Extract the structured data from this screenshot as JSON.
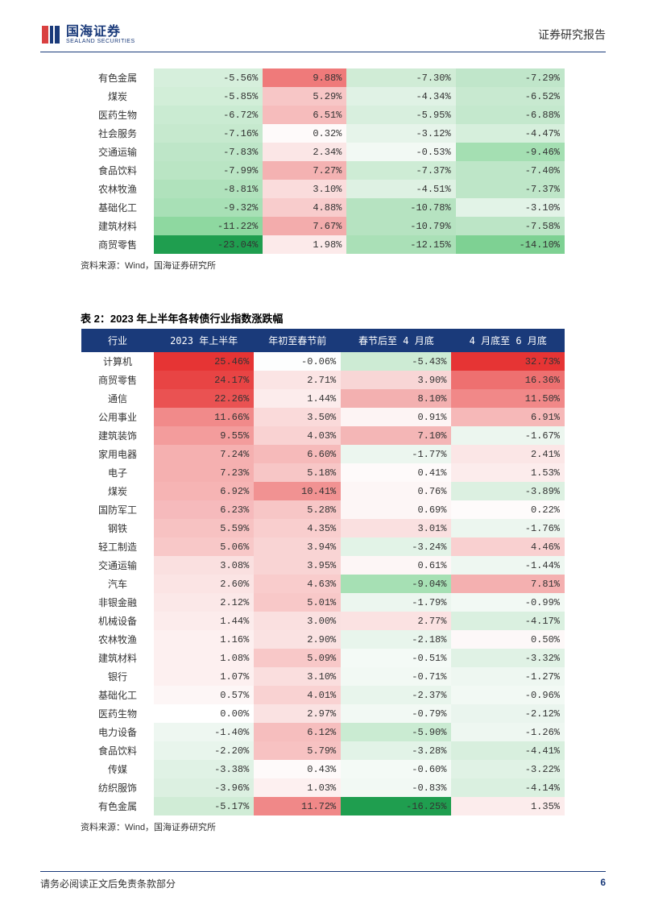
{
  "header": {
    "logo_cn": "国海证券",
    "logo_en": "SEALAND SECURITIES",
    "right": "证券研究报告"
  },
  "palette": {
    "header_bg": "#1a3a7a",
    "header_fg": "#ffffff",
    "green_max": "#1f9e4f",
    "green_mid": "#a8e0b8",
    "green_light": "#e4f5e9",
    "red_max": "#e63434",
    "red_mid": "#f5a8a8",
    "red_light": "#fbe8e8",
    "white": "#ffffff"
  },
  "table1": {
    "rows": [
      {
        "label": "有色金属",
        "cells": [
          {
            "v": "-5.56%",
            "bg": "#d6efdc"
          },
          {
            "v": "9.88%",
            "bg": "#ef7a7a"
          },
          {
            "v": "-7.30%",
            "bg": "#d0ecd6"
          },
          {
            "v": "-7.29%",
            "bg": "#c0e6ca"
          }
        ]
      },
      {
        "label": "煤炭",
        "cells": [
          {
            "v": "-5.85%",
            "bg": "#d2eed8"
          },
          {
            "v": "5.29%",
            "bg": "#f7c6c6"
          },
          {
            "v": "-4.34%",
            "bg": "#e0f2e5"
          },
          {
            "v": "-6.52%",
            "bg": "#c8e9d0"
          }
        ]
      },
      {
        "label": "医药生物",
        "cells": [
          {
            "v": "-6.72%",
            "bg": "#caebd2"
          },
          {
            "v": "6.51%",
            "bg": "#f6bcbc"
          },
          {
            "v": "-5.95%",
            "bg": "#d8efde"
          },
          {
            "v": "-6.88%",
            "bg": "#c4e8cd"
          }
        ]
      },
      {
        "label": "社会服务",
        "cells": [
          {
            "v": "-7.16%",
            "bg": "#c6e9ce"
          },
          {
            "v": "0.32%",
            "bg": "#fefafa"
          },
          {
            "v": "-3.12%",
            "bg": "#e6f4ea"
          },
          {
            "v": "-4.47%",
            "bg": "#d6efdc"
          }
        ]
      },
      {
        "label": "交通运输",
        "cells": [
          {
            "v": "-7.83%",
            "bg": "#bee6c8"
          },
          {
            "v": "2.34%",
            "bg": "#fbe6e6"
          },
          {
            "v": "-0.53%",
            "bg": "#f2f9f4"
          },
          {
            "v": "-9.46%",
            "bg": "#a4dfb2"
          }
        ]
      },
      {
        "label": "食品饮料",
        "cells": [
          {
            "v": "-7.99%",
            "bg": "#bae5c4"
          },
          {
            "v": "7.27%",
            "bg": "#f4b2b2"
          },
          {
            "v": "-7.37%",
            "bg": "#ceecd5"
          },
          {
            "v": "-7.40%",
            "bg": "#bee6c8"
          }
        ]
      },
      {
        "label": "农林牧渔",
        "cells": [
          {
            "v": "-8.81%",
            "bg": "#b0e2bc"
          },
          {
            "v": "3.10%",
            "bg": "#fadcdc"
          },
          {
            "v": "-4.51%",
            "bg": "#def1e3"
          },
          {
            "v": "-7.37%",
            "bg": "#bee6c8"
          }
        ]
      },
      {
        "label": "基础化工",
        "cells": [
          {
            "v": "-9.32%",
            "bg": "#a8e0b6"
          },
          {
            "v": "4.88%",
            "bg": "#f8cccc"
          },
          {
            "v": "-10.78%",
            "bg": "#b6e3c1"
          },
          {
            "v": "-3.10%",
            "bg": "#e2f3e7"
          }
        ]
      },
      {
        "label": "建筑材料",
        "cells": [
          {
            "v": "-11.22%",
            "bg": "#8ed8a0"
          },
          {
            "v": "7.67%",
            "bg": "#f3acac"
          },
          {
            "v": "-10.79%",
            "bg": "#b6e3c1"
          },
          {
            "v": "-7.58%",
            "bg": "#bce5c6"
          }
        ]
      },
      {
        "label": "商贸零售",
        "cells": [
          {
            "v": "-23.04%",
            "bg": "#1f9e4f"
          },
          {
            "v": "1.98%",
            "bg": "#fceaea"
          },
          {
            "v": "-12.15%",
            "bg": "#aae0b7"
          },
          {
            "v": "-14.10%",
            "bg": "#7ed193"
          }
        ]
      }
    ],
    "source": "资料来源：Wind，国海证券研究所"
  },
  "table2": {
    "title": "表 2：2023 年上半年各转债行业指数涨跌幅",
    "columns": [
      "行业",
      "2023 年上半年",
      "年初至春节前",
      "春节后至 4 月底",
      "4 月底至 6 月底"
    ],
    "rows": [
      {
        "label": "计算机",
        "cells": [
          {
            "v": "25.46%",
            "bg": "#e63434"
          },
          {
            "v": "-0.06%",
            "bg": "#fdfefe"
          },
          {
            "v": "-5.43%",
            "bg": "#cdebd4"
          },
          {
            "v": "32.73%",
            "bg": "#e63434"
          }
        ]
      },
      {
        "label": "商贸零售",
        "cells": [
          {
            "v": "24.17%",
            "bg": "#e84444"
          },
          {
            "v": "2.71%",
            "bg": "#fbe4e4"
          },
          {
            "v": "3.90%",
            "bg": "#f8d6d6"
          },
          {
            "v": "16.36%",
            "bg": "#ee7070"
          }
        ]
      },
      {
        "label": "通信",
        "cells": [
          {
            "v": "22.26%",
            "bg": "#ea5252"
          },
          {
            "v": "1.44%",
            "bg": "#fcecec"
          },
          {
            "v": "8.10%",
            "bg": "#f3b0b0"
          },
          {
            "v": "11.50%",
            "bg": "#f18888"
          }
        ]
      },
      {
        "label": "公用事业",
        "cells": [
          {
            "v": "11.66%",
            "bg": "#f18a8a"
          },
          {
            "v": "3.50%",
            "bg": "#fadada"
          },
          {
            "v": "0.91%",
            "bg": "#fdf4f4"
          },
          {
            "v": "6.91%",
            "bg": "#f6b8b8"
          }
        ]
      },
      {
        "label": "建筑装饰",
        "cells": [
          {
            "v": "9.55%",
            "bg": "#f39c9c"
          },
          {
            "v": "4.03%",
            "bg": "#f9d2d2"
          },
          {
            "v": "7.10%",
            "bg": "#f4b6b6"
          },
          {
            "v": "-1.67%",
            "bg": "#ecf6ef"
          }
        ]
      },
      {
        "label": "家用电器",
        "cells": [
          {
            "v": "7.24%",
            "bg": "#f5b0b0"
          },
          {
            "v": "6.60%",
            "bg": "#f6baba"
          },
          {
            "v": "-1.77%",
            "bg": "#ecf6ef"
          },
          {
            "v": "2.41%",
            "bg": "#fbe6e6"
          }
        ]
      },
      {
        "label": "电子",
        "cells": [
          {
            "v": "7.23%",
            "bg": "#f5b0b0"
          },
          {
            "v": "5.18%",
            "bg": "#f7c6c6"
          },
          {
            "v": "0.41%",
            "bg": "#fefafa"
          },
          {
            "v": "1.53%",
            "bg": "#fcecec"
          }
        ]
      },
      {
        "label": "煤炭",
        "cells": [
          {
            "v": "6.92%",
            "bg": "#f6b4b4"
          },
          {
            "v": "10.41%",
            "bg": "#f19292"
          },
          {
            "v": "0.76%",
            "bg": "#fdf6f6"
          },
          {
            "v": "-3.89%",
            "bg": "#dcf0e1"
          }
        ]
      },
      {
        "label": "国防军工",
        "cells": [
          {
            "v": "6.23%",
            "bg": "#f6babc"
          },
          {
            "v": "5.28%",
            "bg": "#f7c6c6"
          },
          {
            "v": "0.69%",
            "bg": "#fdf6f6"
          },
          {
            "v": "0.22%",
            "bg": "#fefbfb"
          }
        ]
      },
      {
        "label": "钢铁",
        "cells": [
          {
            "v": "5.59%",
            "bg": "#f7c2c2"
          },
          {
            "v": "4.35%",
            "bg": "#f9cece"
          },
          {
            "v": "3.01%",
            "bg": "#fae0e0"
          },
          {
            "v": "-1.76%",
            "bg": "#ecf6ef"
          }
        ]
      },
      {
        "label": "轻工制造",
        "cells": [
          {
            "v": "5.06%",
            "bg": "#f8c8c8"
          },
          {
            "v": "3.94%",
            "bg": "#f9d4d4"
          },
          {
            "v": "-3.24%",
            "bg": "#e2f3e7"
          },
          {
            "v": "4.46%",
            "bg": "#f9d0d0"
          }
        ]
      },
      {
        "label": "交通运输",
        "cells": [
          {
            "v": "3.08%",
            "bg": "#fae0e0"
          },
          {
            "v": "3.95%",
            "bg": "#f9d4d4"
          },
          {
            "v": "0.61%",
            "bg": "#fdf6f6"
          },
          {
            "v": "-1.44%",
            "bg": "#eef7f1"
          }
        ]
      },
      {
        "label": "汽车",
        "cells": [
          {
            "v": "2.60%",
            "bg": "#fbe4e4"
          },
          {
            "v": "4.63%",
            "bg": "#f9cccc"
          },
          {
            "v": "-9.04%",
            "bg": "#a6e0b4"
          },
          {
            "v": "7.81%",
            "bg": "#f4b0b0"
          }
        ]
      },
      {
        "label": "非银金融",
        "cells": [
          {
            "v": "2.12%",
            "bg": "#fbe8e8"
          },
          {
            "v": "5.01%",
            "bg": "#f8c8c8"
          },
          {
            "v": "-1.79%",
            "bg": "#ecf6ef"
          },
          {
            "v": "-0.99%",
            "bg": "#f2f9f4"
          }
        ]
      },
      {
        "label": "机械设备",
        "cells": [
          {
            "v": "1.44%",
            "bg": "#fcecec"
          },
          {
            "v": "3.00%",
            "bg": "#fae0e0"
          },
          {
            "v": "2.77%",
            "bg": "#fbe2e2"
          },
          {
            "v": "-4.17%",
            "bg": "#daf0e0"
          }
        ]
      },
      {
        "label": "农林牧渔",
        "cells": [
          {
            "v": "1.16%",
            "bg": "#fdf0f0"
          },
          {
            "v": "2.90%",
            "bg": "#fae2e2"
          },
          {
            "v": "-2.18%",
            "bg": "#e8f5ec"
          },
          {
            "v": "0.50%",
            "bg": "#fdf8f8"
          }
        ]
      },
      {
        "label": "建筑材料",
        "cells": [
          {
            "v": "1.08%",
            "bg": "#fdf0f0"
          },
          {
            "v": "5.09%",
            "bg": "#f8c8c8"
          },
          {
            "v": "-0.51%",
            "bg": "#f4faf6"
          },
          {
            "v": "-3.32%",
            "bg": "#e0f2e5"
          }
        ]
      },
      {
        "label": "银行",
        "cells": [
          {
            "v": "1.07%",
            "bg": "#fdf0f0"
          },
          {
            "v": "3.10%",
            "bg": "#fadede"
          },
          {
            "v": "-0.71%",
            "bg": "#f2f9f4"
          },
          {
            "v": "-1.27%",
            "bg": "#eef7f1"
          }
        ]
      },
      {
        "label": "基础化工",
        "cells": [
          {
            "v": "0.57%",
            "bg": "#fdf6f6"
          },
          {
            "v": "4.01%",
            "bg": "#f9d2d2"
          },
          {
            "v": "-2.37%",
            "bg": "#e8f5ec"
          },
          {
            "v": "-0.96%",
            "bg": "#f2f9f4"
          }
        ]
      },
      {
        "label": "医药生物",
        "cells": [
          {
            "v": "0.00%",
            "bg": "#ffffff"
          },
          {
            "v": "2.97%",
            "bg": "#fae2e2"
          },
          {
            "v": "-0.79%",
            "bg": "#f2f9f4"
          },
          {
            "v": "-2.12%",
            "bg": "#eaf5ee"
          }
        ]
      },
      {
        "label": "电力设备",
        "cells": [
          {
            "v": "-1.40%",
            "bg": "#eef7f1"
          },
          {
            "v": "6.12%",
            "bg": "#f6bebe"
          },
          {
            "v": "-5.90%",
            "bg": "#caebd2"
          },
          {
            "v": "-1.26%",
            "bg": "#eef7f1"
          }
        ]
      },
      {
        "label": "食品饮料",
        "cells": [
          {
            "v": "-2.20%",
            "bg": "#e8f5ec"
          },
          {
            "v": "5.79%",
            "bg": "#f7c2c2"
          },
          {
            "v": "-3.28%",
            "bg": "#e2f3e7"
          },
          {
            "v": "-4.41%",
            "bg": "#d8efde"
          }
        ]
      },
      {
        "label": "传媒",
        "cells": [
          {
            "v": "-3.38%",
            "bg": "#e0f2e5"
          },
          {
            "v": "0.43%",
            "bg": "#fefafa"
          },
          {
            "v": "-0.60%",
            "bg": "#f4faf6"
          },
          {
            "v": "-3.22%",
            "bg": "#e0f2e5"
          }
        ]
      },
      {
        "label": "纺织服饰",
        "cells": [
          {
            "v": "-3.96%",
            "bg": "#dcf0e1"
          },
          {
            "v": "1.03%",
            "bg": "#fdf0f0"
          },
          {
            "v": "-0.83%",
            "bg": "#f2f9f4"
          },
          {
            "v": "-4.14%",
            "bg": "#daf0e0"
          }
        ]
      },
      {
        "label": "有色金属",
        "cells": [
          {
            "v": "-5.17%",
            "bg": "#d0ecd6"
          },
          {
            "v": "11.72%",
            "bg": "#f08888"
          },
          {
            "v": "-16.25%",
            "bg": "#1f9e4f"
          },
          {
            "v": "1.35%",
            "bg": "#fcecec"
          }
        ]
      }
    ],
    "source": "资料来源：Wind，国海证券研究所"
  },
  "footer": {
    "text": "请务必阅读正文后免责条款部分",
    "page": "6"
  }
}
